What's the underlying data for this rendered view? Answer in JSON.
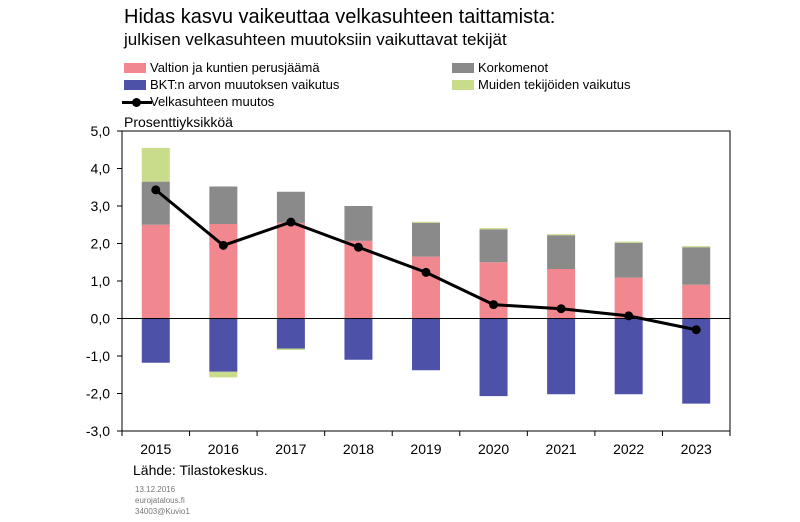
{
  "title": "Hidas kasvu vaikeuttaa velkasuhteen taittamista:",
  "subtitle": "julkisen velkasuhteen muutoksiin vaikuttavat tekijät",
  "legend": {
    "primary": "Valtion ja kuntien perusjäämä",
    "gdp": "BKT:n arvon muutoksen vaikutus",
    "line": "Velkasuhteen muutos",
    "interest": "Korkomenot",
    "other": "Muiden tekijöiden vaikutus"
  },
  "colors": {
    "primary": "#f2888f",
    "gdp": "#4d52a8",
    "interest": "#8a8a8a",
    "other": "#c8dc8c",
    "line": "#000000"
  },
  "source": "Lähde: Tilastokeskus.",
  "meta": {
    "date": "13.12.2016",
    "site": "eurojatalous.fi",
    "code": "34003@Kuvio1"
  },
  "chart_data": {
    "type": "bar",
    "stacked": true,
    "ylabel": "Prosenttiyksikköä",
    "ylim": [
      -3.0,
      5.0
    ],
    "yticks": [
      "5,0",
      "4,0",
      "3,0",
      "2,0",
      "1,0",
      "0,0",
      "-1,0",
      "-2,0",
      "-3,0"
    ],
    "categories": [
      "2015",
      "2016",
      "2017",
      "2018",
      "2019",
      "2020",
      "2021",
      "2022",
      "2023"
    ],
    "series": [
      {
        "name": "Valtion ja kuntien perusjäämä",
        "key": "primary",
        "values": [
          2.5,
          2.52,
          2.55,
          2.07,
          1.65,
          1.5,
          1.32,
          1.09,
          0.9
        ]
      },
      {
        "name": "Korkomenot",
        "key": "interest",
        "values": [
          1.15,
          1.0,
          0.83,
          0.93,
          0.9,
          0.88,
          0.9,
          0.93,
          1.0
        ]
      },
      {
        "name": "BKT:n arvon muutoksen vaikutus",
        "key": "gdp",
        "values": [
          -1.18,
          -1.42,
          -0.8,
          -1.1,
          -1.38,
          -2.07,
          -2.02,
          -2.02,
          -2.27
        ]
      },
      {
        "name": "Muiden tekijöiden vaikutus",
        "key": "other",
        "values": [
          0.9,
          -0.15,
          -0.04,
          0.0,
          0.03,
          0.03,
          0.03,
          0.03,
          0.03
        ]
      }
    ],
    "line": {
      "name": "Velkasuhteen muutos",
      "values": [
        3.43,
        1.95,
        2.57,
        1.9,
        1.23,
        0.37,
        0.26,
        0.07,
        -0.3
      ]
    }
  }
}
